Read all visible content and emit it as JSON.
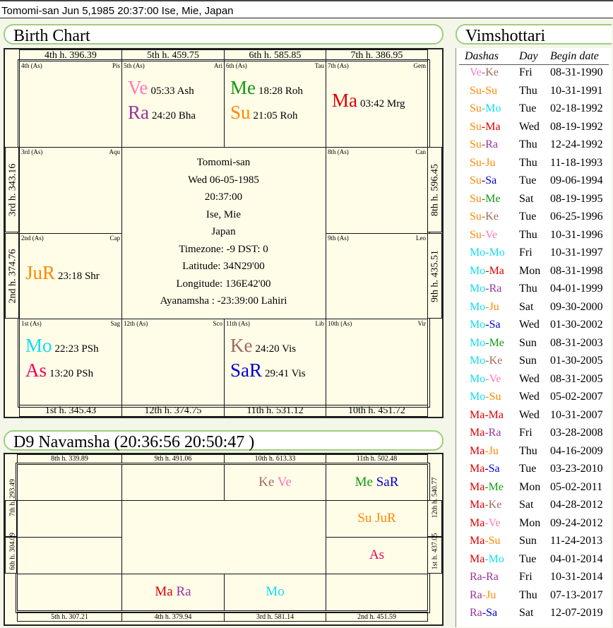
{
  "header": {
    "title": "Tomomi-san  Jun 5,1985 20:37:00  Ise, Mie, Japan"
  },
  "birth_chart": {
    "title": "Birth Chart",
    "top_houses": [
      "4th h.  396.39",
      "5th h.  459.75",
      "6th h.  585.85",
      "7th h.  386.95"
    ],
    "bottom_houses": [
      "1st h.  345.43",
      "12th h.  374.75",
      "11th h.  531.12",
      "10th h.  451.72"
    ],
    "left_houses": [
      "3rd h.  343.16",
      "2nd h.  374.76"
    ],
    "right_houses": [
      "8th h.  596.45",
      "9th h.  435.51"
    ],
    "cells": {
      "c4": {
        "house": "4th (As)",
        "sign": "Pis"
      },
      "c5": {
        "house": "5th (As)",
        "sign": "Ari",
        "p1": "Ve",
        "t1": "05:33 Ash",
        "p2": "Ra",
        "t2": "24:20 Bha"
      },
      "c6": {
        "house": "6th (As)",
        "sign": "Tau",
        "p1": "Me",
        "t1": "18:28 Roh",
        "p2": "Su",
        "t2": "21:05 Roh"
      },
      "c7": {
        "house": "7th (As)",
        "sign": "Gem",
        "p1": "Ma",
        "t1": "03:42 Mrg"
      },
      "c3": {
        "house": "3rd (As)",
        "sign": "Aqu"
      },
      "c8": {
        "house": "8th (As)",
        "sign": "Can"
      },
      "c2": {
        "house": "2nd (As)",
        "sign": "Cap",
        "p1": "JuR",
        "t1": "23:18 Shr"
      },
      "c9": {
        "house": "9th (As)",
        "sign": "Leo"
      },
      "c1": {
        "house": "1st (As)",
        "sign": "Sag",
        "p1": "Mo",
        "t1": "22:23 PSh",
        "p2": "As",
        "t2": "13:20 PSh"
      },
      "c12": {
        "house": "12th (As)",
        "sign": "Sco"
      },
      "c11": {
        "house": "11th (As)",
        "sign": "Lib",
        "p1": "Ke",
        "t1": "24:20 Vis",
        "p2": "SaR",
        "t2": "29:41 Vis"
      },
      "c10": {
        "house": "10th (As)",
        "sign": "Vir"
      }
    },
    "center": [
      "Tomomi-san",
      "Wed 06-05-1985",
      "20:37:00",
      "Ise, Mie",
      "Japan",
      "Timezone: -9 DST: 0",
      "Latitude: 34N29'00",
      "Longitude: 136E42'00",
      "Ayanamsha : -23:39:00 Lahiri"
    ]
  },
  "navamsha": {
    "title": "D9 Navamsha  (20:36:56  20:50:47 )",
    "top_houses": [
      "8th h.  339.89",
      "9th h.  491.06",
      "10th h.  613.33",
      "11th h.  502.48"
    ],
    "bottom_houses": [
      "5th h.  307.21",
      "4th h.  379.94",
      "3rd h.  581.14",
      "2nd h.  451.59"
    ],
    "left_houses": [
      "7th h.  293.49",
      "6th h.  304.09"
    ],
    "right_houses": [
      "12th h.  540.77",
      "1st h.  437.05"
    ],
    "planets": {
      "r0c2": [
        "Ke",
        "Ve"
      ],
      "r0c3": [
        "Me",
        "SaR"
      ],
      "r1c3": [
        "Su",
        "JuR"
      ],
      "r2c3": [
        "As"
      ],
      "r3c1": [
        "Ma",
        "Ra"
      ],
      "r3c2": [
        "Mo"
      ]
    }
  },
  "colors": {
    "Ve": "#ff77bb",
    "Ke": "#a06a5a",
    "Su": "#ff8800",
    "Mo": "#11ddee",
    "Ma": "#dd0000",
    "Ra": "#993399",
    "Ju": "#ff8800",
    "Sa": "#0000cc",
    "Me": "#119911",
    "As": "#ee0055"
  },
  "vimshottari": {
    "title": "Vimshottari",
    "headers": [
      "Dashas",
      "Day",
      "Begin date"
    ],
    "rows": [
      [
        "Ve-Ke",
        "Fri",
        "08-31-1990"
      ],
      [
        "Su-Su",
        "Thu",
        "10-31-1991"
      ],
      [
        "Su-Mo",
        "Tue",
        "02-18-1992"
      ],
      [
        "Su-Ma",
        "Wed",
        "08-19-1992"
      ],
      [
        "Su-Ra",
        "Thu",
        "12-24-1992"
      ],
      [
        "Su-Ju",
        "Thu",
        "11-18-1993"
      ],
      [
        "Su-Sa",
        "Tue",
        "09-06-1994"
      ],
      [
        "Su-Me",
        "Sat",
        "08-19-1995"
      ],
      [
        "Su-Ke",
        "Tue",
        "06-25-1996"
      ],
      [
        "Su-Ve",
        "Thu",
        "10-31-1996"
      ],
      [
        "Mo-Mo",
        "Fri",
        "10-31-1997"
      ],
      [
        "Mo-Ma",
        "Mon",
        "08-31-1998"
      ],
      [
        "Mo-Ra",
        "Thu",
        "04-01-1999"
      ],
      [
        "Mo-Ju",
        "Sat",
        "09-30-2000"
      ],
      [
        "Mo-Sa",
        "Wed",
        "01-30-2002"
      ],
      [
        "Mo-Me",
        "Sun",
        "08-31-2003"
      ],
      [
        "Mo-Ke",
        "Sun",
        "01-30-2005"
      ],
      [
        "Mo-Ve",
        "Wed",
        "08-31-2005"
      ],
      [
        "Mo-Su",
        "Wed",
        "05-02-2007"
      ],
      [
        "Ma-Ma",
        "Wed",
        "10-31-2007"
      ],
      [
        "Ma-Ra",
        "Fri",
        "03-28-2008"
      ],
      [
        "Ma-Ju",
        "Thu",
        "04-16-2009"
      ],
      [
        "Ma-Sa",
        "Tue",
        "03-23-2010"
      ],
      [
        "Ma-Me",
        "Mon",
        "05-02-2011"
      ],
      [
        "Ma-Ke",
        "Sat",
        "04-28-2012"
      ],
      [
        "Ma-Ve",
        "Mon",
        "09-24-2012"
      ],
      [
        "Ma-Su",
        "Sun",
        "11-24-2013"
      ],
      [
        "Ma-Mo",
        "Tue",
        "04-01-2014"
      ],
      [
        "Ra-Ra",
        "Fri",
        "10-31-2014"
      ],
      [
        "Ra-Ju",
        "Thu",
        "07-13-2017"
      ],
      [
        "Ra-Sa",
        "Sat",
        "12-07-2019"
      ]
    ]
  }
}
